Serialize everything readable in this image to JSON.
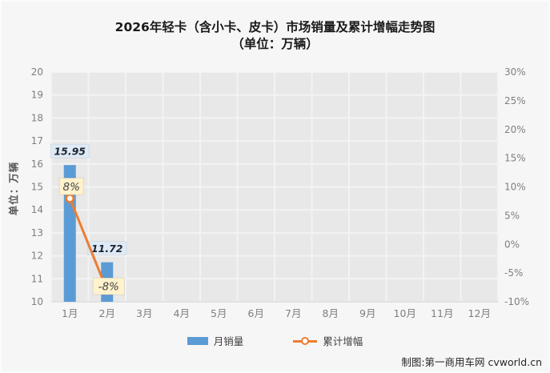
{
  "title": {
    "line1": "2026年轻卡（含小卡、皮卡）市场销量及累计增幅走势图",
    "line2": "（单位：万辆）"
  },
  "watermark": "制图:第一商用车网 cvworld.cn",
  "legend": [
    {
      "label": "月销量",
      "type": "bar",
      "color": "#5B9BD5"
    },
    {
      "label": "累计增幅",
      "type": "line",
      "color": "#ED7D31"
    }
  ],
  "colors": {
    "page_bg": "#F6F6F6",
    "plot_bg": "#E8E8E8",
    "grid": "#F3F3F3",
    "bar": "#5B9BD5",
    "line": "#ED7D31",
    "marker_fill": "#FFFFFF",
    "bar_label_bg": "#DEEBF7",
    "bar_label_text": "#1F2430",
    "pct_label_bg": "#FFF2CC",
    "pct_label_text": "#404040",
    "tick_text": "#7F7F7F",
    "axis_line": "#CFCFCF"
  },
  "chart_data": {
    "type": "bar+line",
    "title": "2026年轻卡（含小卡、皮卡）市场销量及累计增幅走势图（单位：万辆）",
    "categories": [
      "1月",
      "2月",
      "3月",
      "4月",
      "5月",
      "6月",
      "7月",
      "8月",
      "9月",
      "10月",
      "11月",
      "12月"
    ],
    "series": [
      {
        "name": "月销量",
        "type": "bar",
        "axis": "left",
        "color": "#5B9BD5",
        "values": [
          15.95,
          11.72,
          null,
          null,
          null,
          null,
          null,
          null,
          null,
          null,
          null,
          null
        ],
        "data_labels": [
          "15.95",
          "11.72",
          null,
          null,
          null,
          null,
          null,
          null,
          null,
          null,
          null,
          null
        ]
      },
      {
        "name": "累计增幅",
        "type": "line",
        "axis": "right",
        "color": "#ED7D31",
        "values": [
          8,
          -8,
          null,
          null,
          null,
          null,
          null,
          null,
          null,
          null,
          null,
          null
        ],
        "data_labels": [
          "8%",
          "-8%",
          null,
          null,
          null,
          null,
          null,
          null,
          null,
          null,
          null,
          null
        ]
      }
    ],
    "left_axis": {
      "title": "单位：万辆",
      "min": 10,
      "max": 20,
      "step": 1,
      "ticks": [
        "20",
        "19",
        "18",
        "17",
        "16",
        "15",
        "14",
        "13",
        "12",
        "11",
        "10"
      ]
    },
    "right_axis": {
      "min": -10,
      "max": 30,
      "step": 5,
      "ticks": [
        "30%",
        "25%",
        "20%",
        "15%",
        "10%",
        "5%",
        "0%",
        "-5%",
        "-10%"
      ]
    },
    "grid": true,
    "legend_position": "bottom"
  }
}
